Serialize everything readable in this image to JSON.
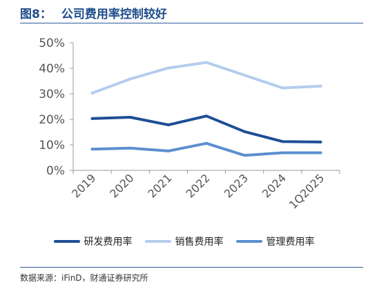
{
  "figure": {
    "number": "图8：",
    "title": "公司费用率控制较好",
    "source": "数据来源：iFinD，财通证券研究所"
  },
  "chart_data": {
    "type": "line",
    "categories": [
      "2019",
      "2020",
      "2021",
      "2022",
      "2023",
      "2024",
      "1Q2025"
    ],
    "ylim": [
      0,
      50
    ],
    "yticks": [
      0,
      10,
      20,
      30,
      40,
      50
    ],
    "ytick_labels": [
      "0%",
      "10%",
      "20%",
      "30%",
      "40%",
      "50%"
    ],
    "grid": false,
    "legend_position": "bottom",
    "series": [
      {
        "name": "研发费用率",
        "color": "#1f4e96",
        "values": [
          20.3,
          20.8,
          17.8,
          21.3,
          15.2,
          11.3,
          11.1
        ]
      },
      {
        "name": "销售费用率",
        "color": "#b4cdee",
        "values": [
          30.3,
          35.8,
          40.1,
          42.3,
          37.3,
          32.3,
          33.0
        ]
      },
      {
        "name": "管理费用率",
        "color": "#5b8fd0",
        "values": [
          8.3,
          8.7,
          7.6,
          10.6,
          5.9,
          6.9,
          6.9
        ]
      }
    ]
  }
}
